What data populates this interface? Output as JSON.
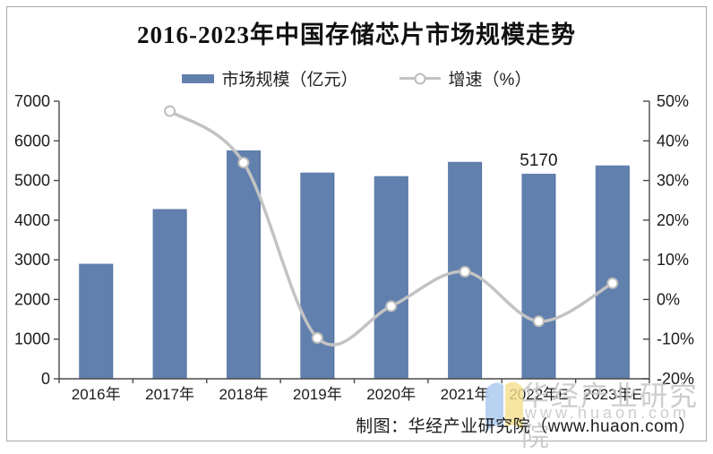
{
  "title": "2016-2023年中国存储芯片市场规模走势",
  "legend": [
    {
      "label": "市场规模（亿元）",
      "type": "bar",
      "color": "#6280AD"
    },
    {
      "label": "增速（%）",
      "type": "line",
      "color": "#C3C3C3"
    }
  ],
  "chart_data": {
    "type": "bar+line",
    "title": "2016-2023年中国存储芯片市场规模走势",
    "categories": [
      "2016年",
      "2017年",
      "2018年",
      "2019年",
      "2020年",
      "2021年",
      "2022年E",
      "2023年E"
    ],
    "series": [
      {
        "name": "市场规模（亿元）",
        "type": "bar",
        "axis": "left",
        "color": "#6280AD",
        "values": [
          2900,
          4280,
          5760,
          5200,
          5110,
          5470,
          5170,
          5380
        ]
      },
      {
        "name": "增速（%）",
        "type": "line",
        "axis": "right",
        "color": "#C3C3C3",
        "marker": {
          "fill": "#FFFFFF",
          "stroke": "#BDBDBD"
        },
        "values": [
          null,
          47.5,
          34.5,
          -9.7,
          -1.7,
          7.0,
          -5.5,
          4.1
        ]
      }
    ],
    "left_axis": {
      "min": 0,
      "max": 7000,
      "step": 1000,
      "tick_labels": [
        "7000",
        "6000",
        "5000",
        "4000",
        "3000",
        "2000",
        "1000",
        "0"
      ]
    },
    "right_axis": {
      "min": -20,
      "max": 50,
      "step": 10,
      "tick_labels": [
        "50%",
        "40%",
        "30%",
        "20%",
        "10%",
        "0%",
        "-10%",
        "-20%"
      ]
    },
    "annotations": [
      {
        "text": "5170",
        "category_index": 6
      }
    ],
    "grid": false,
    "legend_position": "top"
  },
  "caption": "制图：华经产业研究院（www.huaon.com）",
  "watermark": {
    "text": "华经产业研究院",
    "subtext": "www.huaon.com",
    "logo_colors": {
      "left": "#A9C7EE",
      "right": "#F6E18D"
    }
  }
}
